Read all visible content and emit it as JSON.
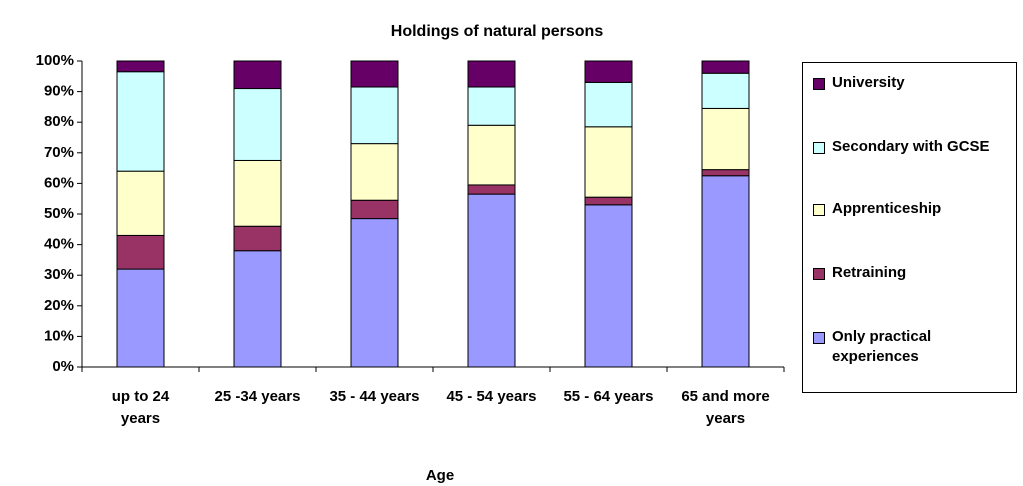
{
  "chart_data": {
    "type": "stacked_bar",
    "title": "Holdings of natural persons",
    "x_label": "Age",
    "categories": [
      "up to 24 years",
      "25 -34 years",
      "35 - 44 years",
      "45 - 54 years",
      "55 - 64 years",
      "65 and more years"
    ],
    "series": [
      {
        "name": "Only practical experiences",
        "color": "#9999ff",
        "values": [
          32,
          38,
          48.5,
          56.5,
          53,
          62.5
        ]
      },
      {
        "name": "Retraining",
        "color": "#993366",
        "values": [
          11,
          8,
          6,
          3,
          2.5,
          2
        ]
      },
      {
        "name": "Apprenticeship",
        "color": "#ffffcc",
        "values": [
          21,
          21.5,
          18.5,
          19.5,
          23,
          20
        ]
      },
      {
        "name": "Secondary with GCSE",
        "color": "#ccffff",
        "values": [
          32.5,
          23.5,
          18.5,
          12.5,
          14.5,
          11.5
        ]
      },
      {
        "name": "University",
        "color": "#660066",
        "values": [
          3.5,
          9,
          8.5,
          8.5,
          7,
          4
        ]
      }
    ],
    "ylim": [
      0,
      100
    ],
    "yticks": [
      {
        "value": 0,
        "label": "0%"
      },
      {
        "value": 10,
        "label": "10%"
      },
      {
        "value": 20,
        "label": "20%"
      },
      {
        "value": 30,
        "label": "30%"
      },
      {
        "value": 40,
        "label": "40%"
      },
      {
        "value": 50,
        "label": "50%"
      },
      {
        "value": 60,
        "label": "60%"
      },
      {
        "value": 70,
        "label": "70%"
      },
      {
        "value": 80,
        "label": "80%"
      },
      {
        "value": 90,
        "label": "90%"
      },
      {
        "value": 100,
        "label": "100%"
      }
    ],
    "legend": "right"
  }
}
